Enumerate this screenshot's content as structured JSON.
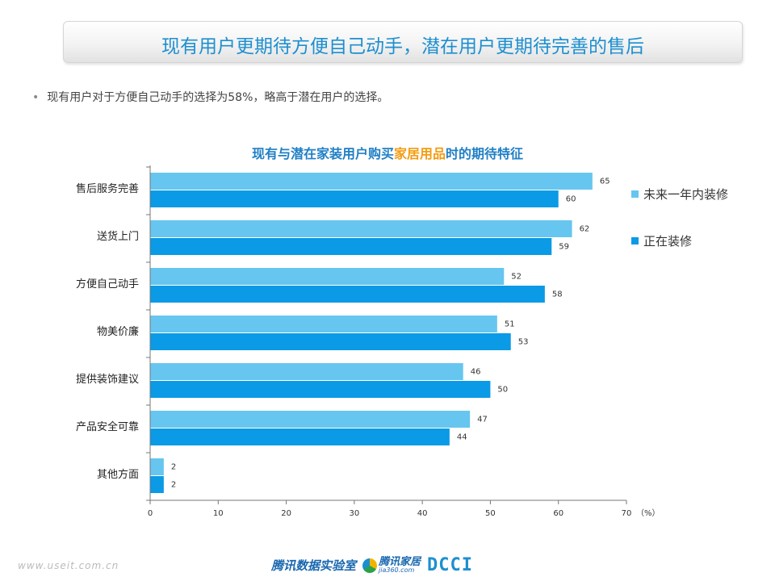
{
  "header": {
    "title": "现有用户更期待方便自己动手，潜在用户更期待完善的售后"
  },
  "bullet": {
    "symbol": "•",
    "text": "现有用户对于方便自己动手的选择为58%，略高于潜在用户的选择。"
  },
  "chart_title": {
    "before": "现有与潜在家装用户购买",
    "highlight": "家居用品",
    "after": "时的期待特征"
  },
  "chart_data": {
    "type": "bar",
    "orientation": "horizontal",
    "title": "现有与潜在家装用户购买家居用品时的期待特征",
    "categories": [
      "售后服务完善",
      "送货上门",
      "方便自己动手",
      "物美价廉",
      "提供装饰建议",
      "产品安全可靠",
      "其他方面"
    ],
    "series": [
      {
        "name": "未来一年内装修",
        "color": "#66c6ef",
        "values": [
          65,
          62,
          52,
          51,
          46,
          47,
          2
        ]
      },
      {
        "name": "正在装修",
        "color": "#0a9ae6",
        "values": [
          60,
          59,
          58,
          53,
          50,
          44,
          2
        ]
      }
    ],
    "xlim": [
      0,
      70
    ],
    "xticks": [
      0,
      10,
      20,
      30,
      40,
      50,
      60,
      70
    ],
    "x_unit_label": "（%）",
    "grid": false,
    "legend_position": "right"
  },
  "footer": {
    "url": "www.useit.com.cn",
    "logo_tencent": "腾讯数据实验室",
    "logo_jia_main": "腾讯家居",
    "logo_jia_sub": "jia360.com",
    "logo_dcci": "DCCI"
  }
}
